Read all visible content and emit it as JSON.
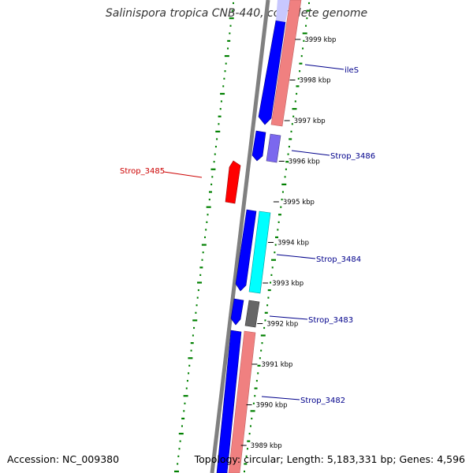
{
  "title": "Salinispora tropica CNB-440, complete genome",
  "footer": {
    "accession": "Accession: NC_009380",
    "summary": "Topology: circular; Length: 5,183,331 bp; Genes: 4,596"
  },
  "ticks": [
    {
      "label": "3999 kbp",
      "kbp": 3999
    },
    {
      "label": "3998 kbp",
      "kbp": 3998
    },
    {
      "label": "3997 kbp",
      "kbp": 3997
    },
    {
      "label": "3996 kbp",
      "kbp": 3996
    },
    {
      "label": "3995 kbp",
      "kbp": 3995
    },
    {
      "label": "3994 kbp",
      "kbp": 3994
    },
    {
      "label": "3993 kbp",
      "kbp": 3993
    },
    {
      "label": "3992 kbp",
      "kbp": 3992
    },
    {
      "label": "3991 kbp",
      "kbp": 3991
    },
    {
      "label": "3990 kbp",
      "kbp": 3990
    },
    {
      "label": "3989 kbp",
      "kbp": 3989
    }
  ],
  "gene_labels": [
    {
      "text": "ileS",
      "color": "#00008b"
    },
    {
      "text": "Strop_3486",
      "color": "#00008b"
    },
    {
      "text": "Strop_3485",
      "color": "#cc0000"
    },
    {
      "text": "Strop_3484",
      "color": "#00008b"
    },
    {
      "text": "Strop_3483",
      "color": "#00008b"
    },
    {
      "text": "Strop_3482",
      "color": "#00008b"
    }
  ],
  "colors": {
    "backbone": "#808080",
    "cds_forward": "#0000ff",
    "cds_reverse": "#ff0000",
    "rna_track": "#f08080",
    "cyan_feature": "#00ffff",
    "lavender_feature": "#7b68ee",
    "gray_feature": "#666666",
    "gc_dots": "#008000"
  }
}
